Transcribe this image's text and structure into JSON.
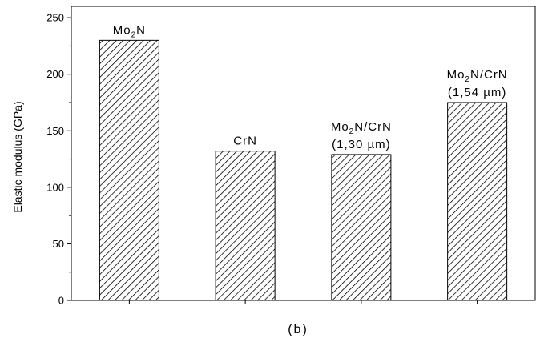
{
  "chart_data": {
    "type": "bar",
    "caption": "(b)",
    "ylabel": "Elastic modulus (GPa)",
    "xlabel": "",
    "ylim": [
      0,
      260
    ],
    "yticks": [
      0,
      50,
      100,
      150,
      200,
      250
    ],
    "bar_fill": "diagonal-hatch",
    "colors": {
      "ink": "#000000",
      "background": "#ffffff"
    },
    "categories": [
      {
        "base": "Mo",
        "sub": "2",
        "rest": "N",
        "note": ""
      },
      {
        "base": "CrN",
        "sub": "",
        "rest": "",
        "note": ""
      },
      {
        "base": "Mo",
        "sub": "2",
        "rest": "N/CrN",
        "note": "(1,30 µm)"
      },
      {
        "base": "Mo",
        "sub": "2",
        "rest": "N/CrN",
        "note": "(1,54 µm)"
      }
    ],
    "values": [
      230,
      132,
      129,
      175
    ]
  }
}
